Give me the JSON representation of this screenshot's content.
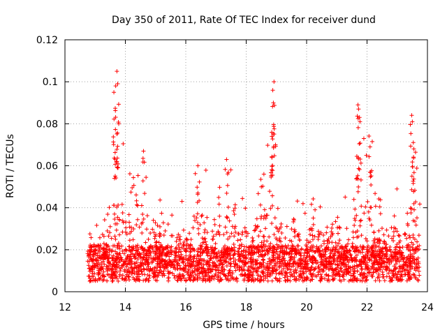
{
  "chart_data": {
    "type": "scatter",
    "title": "Day 350 of 2011, Rate Of TEC Index for receiver dund",
    "xlabel": "GPS time / hours",
    "ylabel": "ROTI / TECUs",
    "xlim": [
      12,
      24
    ],
    "ylim": [
      0,
      0.12
    ],
    "xticks": [
      12,
      14,
      16,
      18,
      20,
      22,
      24
    ],
    "xtick_labels": [
      "12",
      "14",
      "16",
      "18",
      "20",
      "22",
      "24"
    ],
    "yticks": [
      0,
      0.02,
      0.04,
      0.06,
      0.08,
      0.1,
      0.12
    ],
    "ytick_labels": [
      "0",
      "0.02",
      "0.04",
      "0.06",
      "0.08",
      "0.1",
      "0.12"
    ],
    "grid": true,
    "marker": "+",
    "color": "#ff0000",
    "series": [
      {
        "name": "ROTI",
        "x_range": [
          12.75,
          23.75
        ],
        "typical_baseline": 0.012,
        "peaks": [
          {
            "x": 13.72,
            "y": 0.105
          },
          {
            "x": 13.68,
            "y": 0.098
          },
          {
            "x": 13.62,
            "y": 0.095
          },
          {
            "x": 13.78,
            "y": 0.08
          },
          {
            "x": 14.6,
            "y": 0.067
          },
          {
            "x": 16.4,
            "y": 0.06
          },
          {
            "x": 17.35,
            "y": 0.063
          },
          {
            "x": 18.92,
            "y": 0.1
          },
          {
            "x": 18.88,
            "y": 0.096
          },
          {
            "x": 18.9,
            "y": 0.09
          },
          {
            "x": 18.85,
            "y": 0.074
          },
          {
            "x": 21.7,
            "y": 0.089
          },
          {
            "x": 21.72,
            "y": 0.087
          },
          {
            "x": 21.75,
            "y": 0.083
          },
          {
            "x": 22.1,
            "y": 0.069
          },
          {
            "x": 23.48,
            "y": 0.084
          },
          {
            "x": 23.5,
            "y": 0.081
          },
          {
            "x": 23.55,
            "y": 0.068
          }
        ],
        "activity_bands": [
          {
            "from": 12.75,
            "to": 13.4,
            "level": 0.02
          },
          {
            "from": 13.4,
            "to": 14.0,
            "level": 0.06
          },
          {
            "from": 14.0,
            "to": 15.0,
            "level": 0.045
          },
          {
            "from": 15.0,
            "to": 16.2,
            "level": 0.03
          },
          {
            "from": 16.2,
            "to": 17.6,
            "level": 0.045
          },
          {
            "from": 17.6,
            "to": 18.4,
            "level": 0.035
          },
          {
            "from": 18.4,
            "to": 19.1,
            "level": 0.055
          },
          {
            "from": 19.1,
            "to": 21.4,
            "level": 0.035
          },
          {
            "from": 21.4,
            "to": 22.2,
            "level": 0.06
          },
          {
            "from": 22.2,
            "to": 23.3,
            "level": 0.035
          },
          {
            "from": 23.3,
            "to": 23.75,
            "level": 0.055
          }
        ]
      }
    ]
  }
}
